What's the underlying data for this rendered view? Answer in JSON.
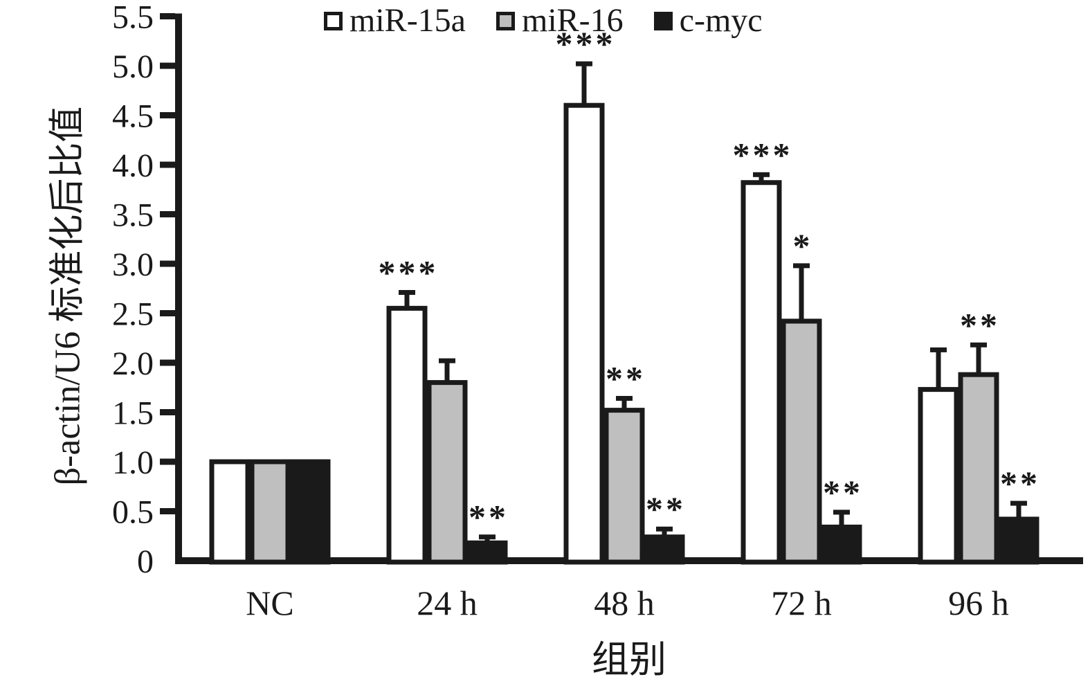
{
  "figure": {
    "background": "#ffffff",
    "ink_color": "#1a1a1a"
  },
  "legend": {
    "items": [
      {
        "label": "miR-15a",
        "fill": "#ffffff"
      },
      {
        "label": "miR-16",
        "fill": "#bfbfbf"
      },
      {
        "label": "c-myc",
        "fill": "#1a1a1a"
      }
    ]
  },
  "chart_data": {
    "type": "bar",
    "title": "",
    "xlabel": "组别",
    "ylabel": "β-actin/U6 标准化后比值",
    "ylim": [
      0,
      5.5
    ],
    "ytick_step": 0.5,
    "ytick_labels": [
      "0",
      "0.5",
      "1.0",
      "1.5",
      "2.0",
      "2.5",
      "3.0",
      "3.5",
      "4.0",
      "4.5",
      "5.0",
      "5.5"
    ],
    "categories": [
      "NC",
      "24 h",
      "48 h",
      "72 h",
      "96 h"
    ],
    "series": [
      {
        "name": "miR-15a",
        "fill": "#ffffff",
        "values": [
          1.0,
          2.55,
          4.6,
          3.82,
          1.73
        ],
        "error_plus": [
          0,
          0.16,
          0.42,
          0.08,
          0.4
        ],
        "significance": [
          "",
          "***",
          "***",
          "***",
          ""
        ]
      },
      {
        "name": "miR-16",
        "fill": "#bfbfbf",
        "values": [
          1.0,
          1.8,
          1.52,
          2.42,
          1.88
        ],
        "error_plus": [
          0,
          0.22,
          0.12,
          0.56,
          0.3
        ],
        "significance": [
          "",
          "",
          "**",
          "*",
          "**"
        ]
      },
      {
        "name": "c-myc",
        "fill": "#1a1a1a",
        "values": [
          1.0,
          0.18,
          0.24,
          0.34,
          0.42
        ],
        "error_plus": [
          0,
          0.06,
          0.08,
          0.15,
          0.16
        ],
        "significance": [
          "",
          "**",
          "**",
          "**",
          "**"
        ]
      }
    ],
    "legend_position": "top",
    "grid": false,
    "error_bars": true
  }
}
